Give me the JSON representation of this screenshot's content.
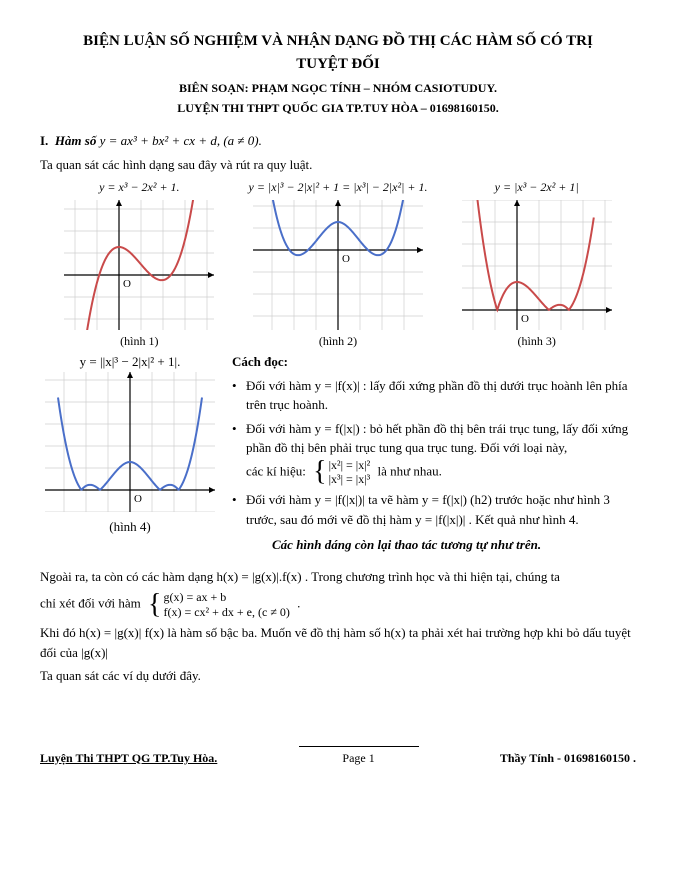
{
  "title_line1": "BIỆN LUẬN SỐ NGHIỆM VÀ NHẬN DẠNG ĐỒ THỊ CÁC HÀM SỐ CÓ TRỊ",
  "title_line2": "TUYỆT ĐỐI",
  "subtitle1": "BIÊN SOẠN: PHẠM NGỌC TÍNH – NHÓM CASIOTUDUY.",
  "subtitle2": "LUYỆN THI THPT QUỐC GIA TP.TUY HÒA – 01698160150.",
  "section_i_label": "I.",
  "section_i_title": "Hàm số",
  "section_i_formula": "y = ax³ + bx² + cx + d, (a ≠ 0).",
  "intro_line": "Ta quan sát các hình dạng sau đây và rút ra quy luật.",
  "graphs_row1": {
    "g1": {
      "eq": "y = x³ − 2x² + 1.",
      "cap": "(hình 1)",
      "curve_color": "#c94a4a"
    },
    "g2": {
      "eq": "y = |x|³ − 2|x|² + 1 = |x³| − 2|x²| + 1.",
      "cap": "(hình 2)",
      "curve_color": "#4a6fc9"
    },
    "g3": {
      "eq": "y = |x³ − 2x² + 1|",
      "cap": "(hình 3)",
      "curve_color": "#c94a4a"
    }
  },
  "graph4": {
    "eq": "y = ||x|³ − 2|x|² + 1|.",
    "cap": "(hình 4)",
    "curve_color": "#4a6fc9"
  },
  "grid_color": "#cfcfcf",
  "axis_color": "#000000",
  "cach_doc": "Cách đọc:",
  "bullet1": "Đối với hàm  y = |f(x)| : lấy đối xứng phần đồ thị dưới trục hoành lên phía trên trục hoành.",
  "bullet2a": "Đối với hàm  y = f(|x|) : bỏ hết phần đồ thị bên trái trục tung, lấy đối xứng phần đồ thị bên phải trục tung qua trục tung. Đối với loại này,",
  "bullet2_sys_intro": "các kí hiệu: ",
  "bullet2_sys_row1": "|x²| = |x|²",
  "bullet2_sys_row2": "|x³| = |x|³",
  "bullet2_sys_after": " là như nhau.",
  "bullet3a": "Đối với hàm  y = |f(|x|)|  ta vẽ hàm  y = f(|x|) (h2) trước hoặc như hình 3 trước, sau đó mới vẽ đồ thị hàm  y = |f(|x|)| . Kết quả như hình 4.",
  "ital_note": "Các hình dáng còn lại thao tác tương tự như trên.",
  "para1": "Ngoài ra, ta còn có các hàm dạng  h(x) = |g(x)|.f(x) . Trong chương trình học và thi hiện tại, chúng ta",
  "para2_pre": "chỉ xét đối với hàm ",
  "sys_row1": "g(x) = ax + b",
  "sys_row2": "f(x) = cx² + dx + e, (c ≠ 0)",
  "sys_after": ".",
  "para3": "Khi đó  h(x) = |g(x)| f(x)  là hàm số bậc ba. Muốn vẽ đồ thị hàm số  h(x)  ta phải xét hai trường hợp khi bỏ dấu tuyệt đối của  |g(x)|",
  "para4": "Ta quan sát  các ví dụ dưới đây.",
  "footer_left": "Luyện Thi THPT QG TP.Tuy Hòa.",
  "footer_center": "Page 1",
  "footer_right": "Thầy Tính - 01698160150 ."
}
